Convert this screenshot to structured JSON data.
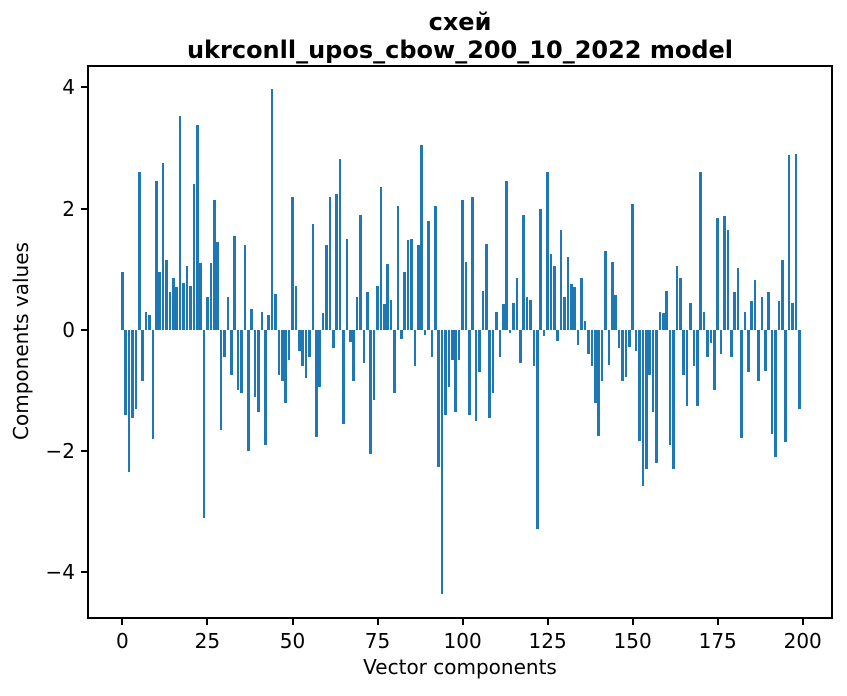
{
  "figure": {
    "title_line1": "схей",
    "title_line2": "ukrconll_upos_cbow_200_10_2022 model",
    "xlabel": "Vector components",
    "ylabel": "Components values",
    "background_color": "#ffffff",
    "bar_color": "#1f77b4",
    "spine_color": "#000000"
  },
  "chart_data": {
    "type": "bar",
    "title": "схей\nukrconll_upos_cbow_200_10_2022 model",
    "xlabel": "Vector components",
    "ylabel": "Components values",
    "legend": null,
    "grid": false,
    "x_start": 0,
    "bar_width": 0.8,
    "x_ticks": [
      0,
      25,
      50,
      75,
      100,
      125,
      150,
      175,
      200
    ],
    "x_tick_labels": [
      "0",
      "25",
      "50",
      "75",
      "100",
      "125",
      "150",
      "175",
      "200"
    ],
    "y_ticks": [
      -4,
      -2,
      0,
      2,
      4
    ],
    "y_tick_labels": [
      "−4",
      "−2",
      "0",
      "2",
      "4"
    ],
    "xlim": [
      -10.4,
      208.9
    ],
    "ylim": [
      -4.77,
      4.37
    ],
    "values": [
      0.95,
      -1.4,
      -2.35,
      -1.45,
      -1.3,
      2.6,
      -0.85,
      0.3,
      0.25,
      -1.8,
      2.45,
      0.95,
      2.75,
      1.15,
      0.62,
      0.85,
      0.7,
      3.53,
      0.78,
      1.05,
      0.72,
      2.4,
      3.38,
      1.1,
      -3.1,
      0.55,
      1.1,
      2.15,
      1.45,
      -1.65,
      -0.45,
      0.55,
      -0.75,
      1.55,
      -1.0,
      -1.05,
      1.4,
      -2.0,
      0.35,
      -1.1,
      -1.35,
      0.3,
      -1.9,
      0.25,
      3.97,
      0.6,
      -0.75,
      -0.85,
      -1.2,
      -0.5,
      2.2,
      0.72,
      -0.35,
      -0.6,
      -0.8,
      -0.45,
      1.75,
      -1.76,
      -0.95,
      0.28,
      1.4,
      2.2,
      -0.3,
      2.25,
      2.82,
      -1.55,
      1.5,
      -0.2,
      -0.85,
      0.55,
      1.9,
      -0.55,
      0.62,
      -2.05,
      -1.15,
      0.72,
      2.35,
      0.42,
      1.08,
      0.5,
      -1.05,
      2.05,
      -0.15,
      0.95,
      1.48,
      1.5,
      -0.6,
      1.4,
      3.05,
      -0.08,
      1.8,
      -0.45,
      2.05,
      -2.27,
      -4.35,
      -1.4,
      -0.95,
      -0.5,
      -1.35,
      -0.5,
      2.15,
      1.12,
      -1.4,
      2.2,
      -1.5,
      -0.7,
      0.65,
      1.42,
      -1.45,
      -1.05,
      0.3,
      -0.45,
      0.42,
      2.45,
      -0.05,
      0.45,
      0.85,
      -0.55,
      1.9,
      0.55,
      0.5,
      -0.6,
      -3.28,
      2.0,
      -0.1,
      2.6,
      1.25,
      1.05,
      -0.18,
      1.65,
      0.55,
      1.2,
      0.75,
      0.7,
      -0.25,
      0.85,
      0.15,
      -0.4,
      -0.6,
      -1.2,
      -1.75,
      -0.85,
      1.3,
      -0.58,
      1.12,
      0.58,
      -0.3,
      -0.85,
      -0.78,
      -0.28,
      2.08,
      -0.35,
      -1.84,
      -2.58,
      -2.3,
      -0.75,
      -1.35,
      -2.2,
      0.3,
      0.28,
      0.65,
      -1.9,
      -2.3,
      1.05,
      0.85,
      -0.75,
      -1.25,
      0.45,
      -0.6,
      -1.25,
      2.6,
      0.3,
      -0.45,
      -0.22,
      -1.0,
      1.85,
      -0.4,
      1.88,
      1.65,
      -0.45,
      0.62,
      1.02,
      -1.78,
      0.3,
      -0.7,
      0.48,
      0.82,
      -0.85,
      0.55,
      -0.68,
      0.62,
      -1.72,
      -2.1,
      0.48,
      1.15,
      -1.85,
      2.88,
      0.45,
      2.9,
      -1.3
    ]
  }
}
